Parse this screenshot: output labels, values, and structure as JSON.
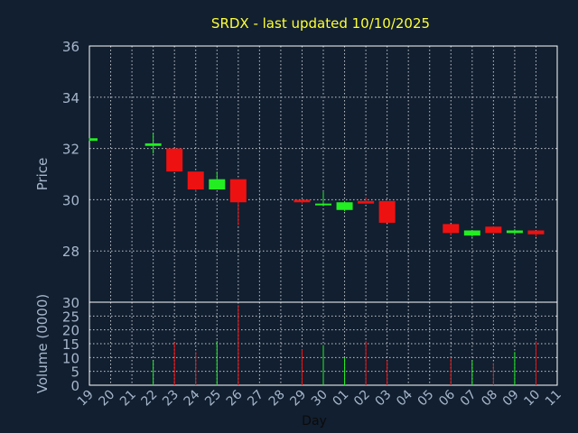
{
  "chart_data": {
    "title": "SRDX - last updated 10/10/2025",
    "price_panel": {
      "type": "candlestick",
      "ylabel": "Price",
      "ylim": [
        26,
        36
      ],
      "yticks": [
        28,
        30,
        32,
        34,
        36
      ],
      "grid": true
    },
    "volume_panel": {
      "type": "bar",
      "ylabel": "Volume (0000)",
      "ylim": [
        0,
        30
      ],
      "yticks": [
        0,
        5,
        10,
        15,
        20,
        25,
        30
      ],
      "grid": true
    },
    "xlabel": "Day",
    "categories": [
      "19",
      "20",
      "21",
      "22",
      "23",
      "24",
      "25",
      "26",
      "27",
      "28",
      "29",
      "30",
      "01",
      "02",
      "03",
      "04",
      "05",
      "06",
      "07",
      "08",
      "09",
      "10",
      "11"
    ],
    "candles": [
      {
        "day": "19",
        "open": 32.3,
        "high": 32.4,
        "low": 32.3,
        "close": 32.4,
        "volume": 0
      },
      {
        "day": "22",
        "open": 32.1,
        "high": 32.6,
        "low": 31.8,
        "close": 32.2,
        "volume": 9
      },
      {
        "day": "23",
        "open": 32.0,
        "high": 32.0,
        "low": 31.1,
        "close": 31.1,
        "volume": 15.5
      },
      {
        "day": "24",
        "open": 31.1,
        "high": 31.1,
        "low": 30.3,
        "close": 30.4,
        "volume": 12
      },
      {
        "day": "25",
        "open": 30.4,
        "high": 31.1,
        "low": 30.4,
        "close": 30.8,
        "volume": 16
      },
      {
        "day": "26",
        "open": 30.8,
        "high": 30.8,
        "low": 29.0,
        "close": 29.9,
        "volume": 29
      },
      {
        "day": "29",
        "open": 30.0,
        "high": 30.0,
        "low": 29.85,
        "close": 29.9,
        "volume": 13
      },
      {
        "day": "30",
        "open": 29.8,
        "high": 30.3,
        "low": 29.8,
        "close": 29.85,
        "volume": 14.5
      },
      {
        "day": "01",
        "open": 29.6,
        "high": 29.95,
        "low": 29.55,
        "close": 29.9,
        "volume": 10
      },
      {
        "day": "02",
        "open": 29.95,
        "high": 30.1,
        "low": 29.85,
        "close": 29.85,
        "volume": 16
      },
      {
        "day": "03",
        "open": 29.95,
        "high": 29.95,
        "low": 29.1,
        "close": 29.1,
        "volume": 9
      },
      {
        "day": "06",
        "open": 29.05,
        "high": 29.05,
        "low": 28.6,
        "close": 28.7,
        "volume": 10
      },
      {
        "day": "07",
        "open": 28.6,
        "high": 28.8,
        "low": 28.55,
        "close": 28.8,
        "volume": 9
      },
      {
        "day": "08",
        "open": 28.95,
        "high": 28.95,
        "low": 28.7,
        "close": 28.7,
        "volume": 8
      },
      {
        "day": "09",
        "open": 28.7,
        "high": 28.85,
        "low": 28.65,
        "close": 28.8,
        "volume": 12
      },
      {
        "day": "10",
        "open": 28.8,
        "high": 28.8,
        "low": 28.55,
        "close": 28.65,
        "volume": 16
      }
    ],
    "colors": {
      "up": "#22ee22",
      "down": "#ee1111",
      "background": "#111f30",
      "title": "#ffff33",
      "axis_text": "#a7b6cb"
    }
  }
}
